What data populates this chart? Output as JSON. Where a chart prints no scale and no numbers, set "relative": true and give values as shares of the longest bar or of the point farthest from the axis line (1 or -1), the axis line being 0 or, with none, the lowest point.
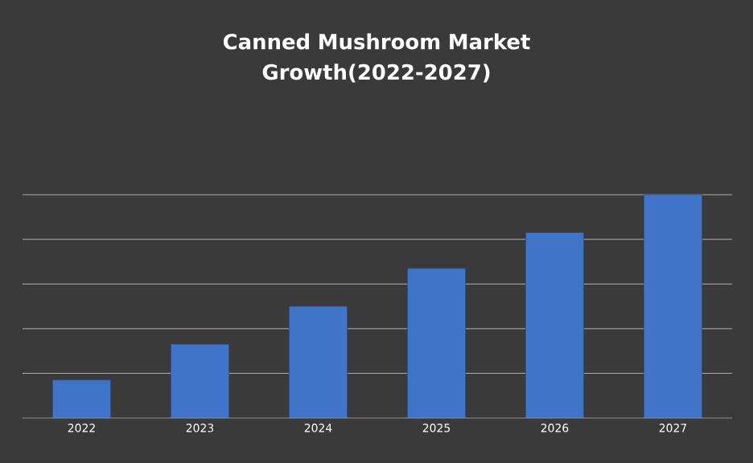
{
  "chart_data": {
    "type": "bar",
    "title": "Canned Mushroom Market Growth(2022-2027)",
    "categories": [
      "2022",
      "2023",
      "2024",
      "2025",
      "2026",
      "2027"
    ],
    "values": [
      0.17,
      0.33,
      0.5,
      0.67,
      0.83,
      1
    ],
    "color": "#3f74c8",
    "relative": true,
    "grid": "y"
  }
}
